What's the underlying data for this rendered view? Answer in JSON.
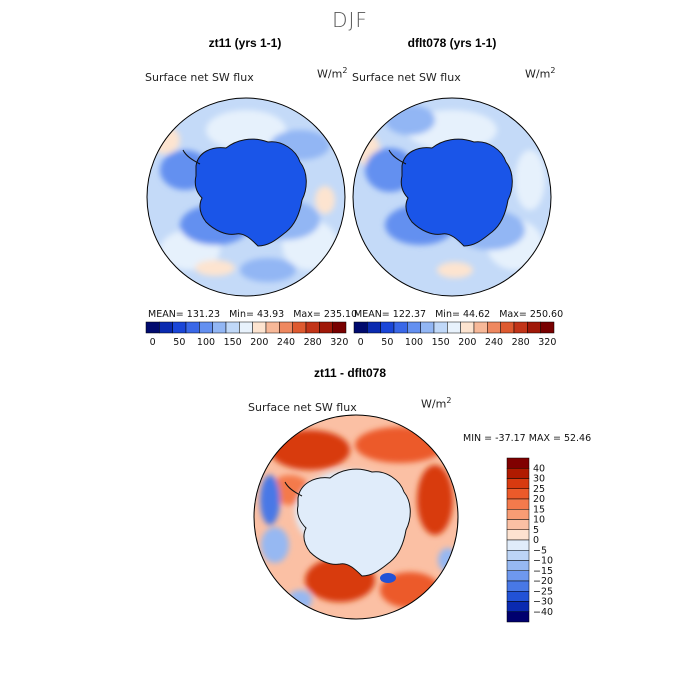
{
  "season": "DJF",
  "panels": [
    {
      "title": "zt11 (yrs 1-1)",
      "variable": "Surface net SW flux",
      "units": "W/m",
      "units_exp": "2",
      "stats": {
        "mean_label": "MEAN=",
        "mean": "131.23",
        "min_label": "Min=",
        "min": "43.93",
        "max_label": "Max=",
        "max": "235.10"
      }
    },
    {
      "title": "dflt078 (yrs 1-1)",
      "variable": "Surface net SW flux",
      "units": "W/m",
      "units_exp": "2",
      "stats": {
        "mean_label": "MEAN=",
        "mean": "122.37",
        "min_label": "Min=",
        "min": "44.62",
        "max_label": "Max=",
        "max": "250.60"
      }
    },
    {
      "title": "zt11 - dflt078",
      "variable": "Surface net SW flux",
      "units": "W/m",
      "units_exp": "2",
      "stats_line": "MIN = -37.17 MAX =  52.46"
    }
  ],
  "chart_data": [
    {
      "type": "heatmap",
      "projection": "south polar stereographic",
      "title": "zt11 (yrs 1-1)",
      "variable": "Surface net SW flux",
      "units": "W/m2",
      "mean": 131.23,
      "min": 43.93,
      "max": 235.1,
      "colorbar": {
        "levels": [
          0,
          25,
          50,
          75,
          100,
          125,
          150,
          175,
          200,
          220,
          240,
          260,
          280,
          300,
          320
        ],
        "tick_labels": [
          "0",
          "50",
          "100",
          "150",
          "200",
          "240",
          "280",
          "320"
        ],
        "colors": [
          "#000a6e",
          "#0a2ab0",
          "#1a46d8",
          "#3a68e8",
          "#6490f0",
          "#92b6f4",
          "#c0d8f8",
          "#e8f2fc",
          "#fde4d0",
          "#f7b898",
          "#ee8860",
          "#de5a30",
          "#c23418",
          "#a01808",
          "#780000"
        ]
      }
    },
    {
      "type": "heatmap",
      "projection": "south polar stereographic",
      "title": "dflt078 (yrs 1-1)",
      "variable": "Surface net SW flux",
      "units": "W/m2",
      "mean": 122.37,
      "min": 44.62,
      "max": 250.6,
      "colorbar": {
        "levels": [
          0,
          25,
          50,
          75,
          100,
          125,
          150,
          175,
          200,
          220,
          240,
          260,
          280,
          300,
          320
        ],
        "tick_labels": [
          "0",
          "50",
          "100",
          "150",
          "200",
          "240",
          "280",
          "320"
        ],
        "colors": [
          "#000a6e",
          "#0a2ab0",
          "#1a46d8",
          "#3a68e8",
          "#6490f0",
          "#92b6f4",
          "#c0d8f8",
          "#e8f2fc",
          "#fde4d0",
          "#f7b898",
          "#ee8860",
          "#de5a30",
          "#c23418",
          "#a01808",
          "#780000"
        ]
      }
    },
    {
      "type": "heatmap",
      "projection": "south polar stereographic",
      "title": "zt11 - dflt078",
      "variable": "Surface net SW flux",
      "units": "W/m2",
      "min": -37.17,
      "max": 52.46,
      "colorbar": {
        "orientation": "vertical",
        "tick_labels": [
          "40",
          "30",
          "25",
          "20",
          "15",
          "10",
          "5",
          "0",
          "−5",
          "−10",
          "−15",
          "−20",
          "−25",
          "−30",
          "−40"
        ],
        "colors": [
          "#800000",
          "#b01a00",
          "#d83a10",
          "#ec5a2a",
          "#f47a4c",
          "#f89c74",
          "#fbc0a4",
          "#fde2d0",
          "#e0ecfa",
          "#bcd4f6",
          "#96b8f2",
          "#6e98ee",
          "#4878e6",
          "#2252d6",
          "#0a2ab0",
          "#00006e"
        ]
      }
    }
  ]
}
